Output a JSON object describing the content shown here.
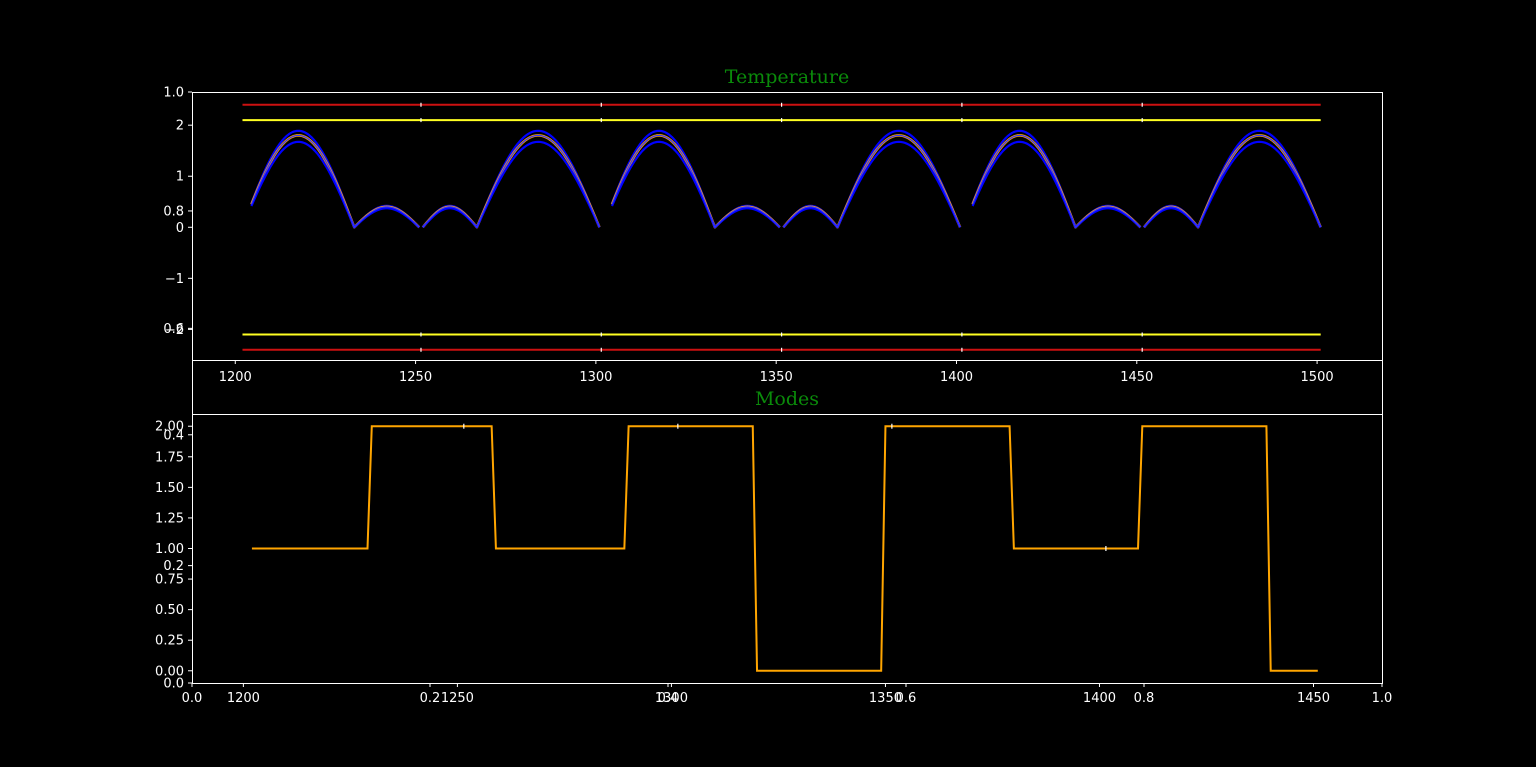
{
  "chart_data": [
    {
      "type": "line",
      "title": "Temperature",
      "xlabel": "",
      "ylabel": "",
      "xlim": [
        1188,
        1518
      ],
      "ylim": [
        -2.6,
        2.65
      ],
      "x_ticks": [
        1200,
        1250,
        1300,
        1350,
        1400,
        1450,
        1500
      ],
      "y_ticks": [
        2,
        1,
        0,
        -1,
        -2
      ],
      "x_range": [
        1202,
        1501
      ],
      "grid": false,
      "legend": "none",
      "overlay_y_ticks": [
        {
          "label": "1.0",
          "value": 2.65
        },
        {
          "label": "0.8",
          "value": 0.32
        },
        {
          "label": "0.6",
          "value": -1.98
        }
      ],
      "series": [
        {
          "kind": "limit-upper",
          "color": "#cc1111",
          "y": 2.4
        },
        {
          "kind": "warn-upper",
          "color": "#ffff22",
          "y": 2.1
        },
        {
          "kind": "warn-lower",
          "color": "#ffff22",
          "y": -2.1
        },
        {
          "kind": "limit-lower",
          "color": "#cc1111",
          "y": -2.4
        },
        {
          "kind": "upper-band",
          "color": "#0000ff",
          "amplitude_scale": 1.05
        },
        {
          "kind": "measured",
          "color": "#ffa500",
          "amplitude_scale": 1.0
        },
        {
          "kind": "lower-band",
          "color": "#0000ff",
          "amplitude_scale": 0.93
        },
        {
          "kind": "baseline",
          "color": "#3333ff",
          "amplitude_scale": 1.0
        }
      ],
      "segments": [
        {
          "x0": 1202,
          "x1": 1251,
          "breakpoints": [
            1202,
            1233,
            1251
          ],
          "amplitudes": [
            1.8,
            0.4
          ]
        },
        {
          "x0": 1252,
          "x1": 1301,
          "breakpoints": [
            1252,
            1267,
            1301
          ],
          "amplitudes": [
            0.4,
            1.8
          ]
        },
        {
          "x0": 1302,
          "x1": 1351,
          "breakpoints": [
            1302,
            1333,
            1351
          ],
          "amplitudes": [
            1.8,
            0.4
          ]
        },
        {
          "x0": 1352,
          "x1": 1401,
          "breakpoints": [
            1352,
            1367,
            1401
          ],
          "amplitudes": [
            0.4,
            1.8
          ]
        },
        {
          "x0": 1402,
          "x1": 1451,
          "breakpoints": [
            1402,
            1433,
            1451
          ],
          "amplitudes": [
            1.8,
            0.4
          ]
        },
        {
          "x0": 1452,
          "x1": 1501,
          "breakpoints": [
            1452,
            1467,
            1501
          ],
          "amplitudes": [
            0.4,
            1.8
          ]
        }
      ]
    },
    {
      "type": "line",
      "title": "Modes",
      "xlabel": "",
      "ylabel": "",
      "xlim": [
        1188,
        1466
      ],
      "ylim": [
        -0.1,
        2.1
      ],
      "x_ticks": [
        1200,
        1250,
        1300,
        1350,
        1400,
        1450
      ],
      "y_ticks": [
        2.0,
        1.75,
        1.5,
        1.25,
        1.0,
        0.75,
        0.5,
        0.25,
        0.0
      ],
      "y_tick_labels": [
        "2.00",
        "1.75",
        "1.50",
        "1.25",
        "1.00",
        "0.75",
        "0.50",
        "0.25",
        "0.00"
      ],
      "grid": false,
      "legend": "none",
      "overlay_y_ticks": [
        {
          "label": "0.4",
          "value": 1.93
        },
        {
          "label": "0.2",
          "value": 0.86
        },
        {
          "label": "0.0",
          "value": -0.1
        }
      ],
      "overlay_x_ticks": [
        {
          "label": "0.0",
          "value": 1188
        },
        {
          "label": "0.2",
          "value": 1243.6
        },
        {
          "label": "0.4",
          "value": 1299.2
        },
        {
          "label": "0.6",
          "value": 1354.8
        },
        {
          "label": "0.8",
          "value": 1410.4
        },
        {
          "label": "1.0",
          "value": 1466
        }
      ],
      "series": [
        {
          "color": "#ffa500",
          "x": [
            1202,
            1229,
            1230,
            1258,
            1259,
            1289,
            1290,
            1319,
            1320,
            1349,
            1350,
            1379,
            1380,
            1409,
            1410,
            1439,
            1440,
            1451
          ],
          "y": [
            1,
            1,
            2,
            2,
            1,
            1,
            2,
            2,
            0,
            0,
            2,
            2,
            1,
            1,
            2,
            2,
            0,
            0
          ]
        }
      ],
      "gaps": [
        1251.5,
        1301.5,
        1351.5,
        1401.5
      ]
    }
  ]
}
